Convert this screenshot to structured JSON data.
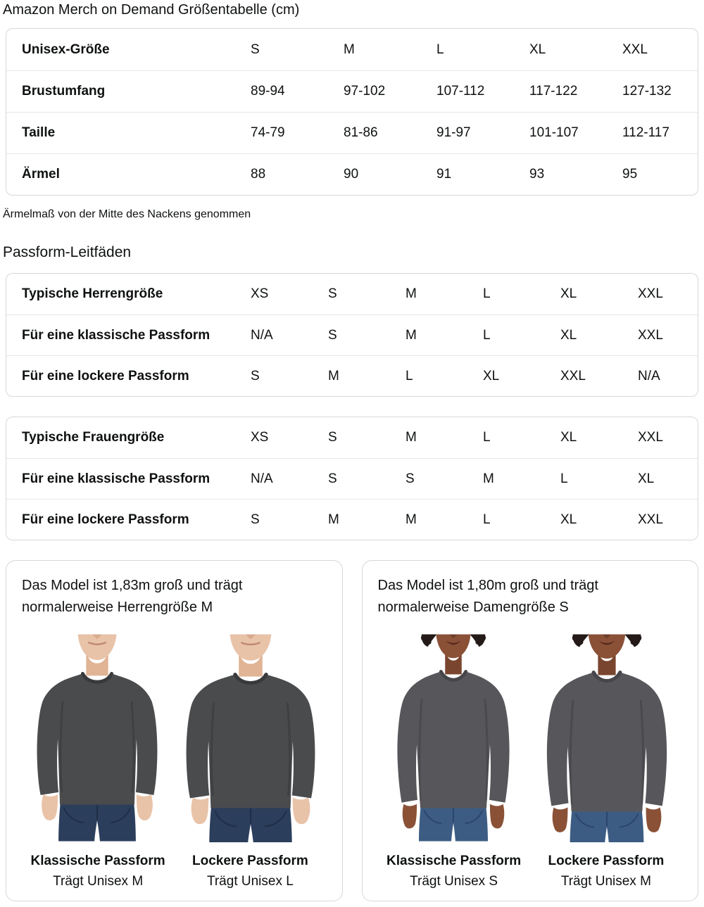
{
  "title": "Amazon Merch on Demand Größentabelle (cm)",
  "note": "Ärmelmaß von der Mitte des Nackens genommen",
  "fit_guides_heading": "Passform-Leitfäden",
  "size_table": {
    "rows": [
      {
        "label": "Unisex-Größe",
        "values": [
          "S",
          "M",
          "L",
          "XL",
          "XXL"
        ]
      },
      {
        "label": "Brustumfang",
        "values": [
          "89-94",
          "97-102",
          "107-112",
          "117-122",
          "127-132"
        ]
      },
      {
        "label": "Taille",
        "values": [
          "74-79",
          "81-86",
          "91-97",
          "101-107",
          "112-117"
        ]
      },
      {
        "label": "Ärmel",
        "values": [
          "88",
          "90",
          "91",
          "93",
          "95"
        ]
      }
    ]
  },
  "fit_tables": [
    {
      "rows": [
        {
          "label": "Typische Herrengröße",
          "values": [
            "XS",
            "S",
            "M",
            "L",
            "XL",
            "XXL"
          ]
        },
        {
          "label": "Für eine klassische Passform",
          "values": [
            "N/A",
            "S",
            "M",
            "L",
            "XL",
            "XXL"
          ]
        },
        {
          "label": "Für eine lockere Passform",
          "values": [
            "S",
            "M",
            "L",
            "XL",
            "XXL",
            "N/A"
          ]
        }
      ]
    },
    {
      "rows": [
        {
          "label": "Typische Frauengröße",
          "values": [
            "XS",
            "S",
            "M",
            "L",
            "XL",
            "XXL"
          ]
        },
        {
          "label": "Für eine klassische Passform",
          "values": [
            "N/A",
            "S",
            "S",
            "M",
            "L",
            "XL"
          ]
        },
        {
          "label": "Für eine lockere Passform",
          "values": [
            "S",
            "M",
            "M",
            "L",
            "XL",
            "XXL"
          ]
        }
      ]
    }
  ],
  "model_cards": [
    {
      "description": "Das Model ist 1,83m groß und trägt normalerweise Herrengröße M",
      "fits": [
        {
          "title": "Klassische Passform",
          "subtitle": "Trägt Unisex M"
        },
        {
          "title": "Lockere Passform",
          "subtitle": "Trägt Unisex L"
        }
      ]
    },
    {
      "description": "Das Model ist 1,80m groß und trägt normalerweise Damengröße S",
      "fits": [
        {
          "title": "Klassische Passform",
          "subtitle": "Trägt Unisex S"
        },
        {
          "title": "Lockere Passform",
          "subtitle": "Trägt Unisex M"
        }
      ]
    }
  ],
  "colors": {
    "table_border": "#d5d9d9",
    "row_divider": "#e7e7e7",
    "text": "#0f1111",
    "shirt_male": "#4a4b4d",
    "shirt_female": "#57575b",
    "collar_male": "#38393b",
    "collar_female": "#46464a",
    "jeans_male": "#2b3e5c",
    "jeans_female": "#3c5c84",
    "jeans_dark_male": "#1f2e46",
    "jeans_dark_female": "#2b466a",
    "skin_male": "#e9c3a8",
    "skin_female": "#8a5137",
    "neck_male": "#e0b495",
    "neck_female": "#7a452f",
    "hair_female": "#241b18",
    "lips_female": "#55281c",
    "mouth_male": "#c08a70"
  }
}
